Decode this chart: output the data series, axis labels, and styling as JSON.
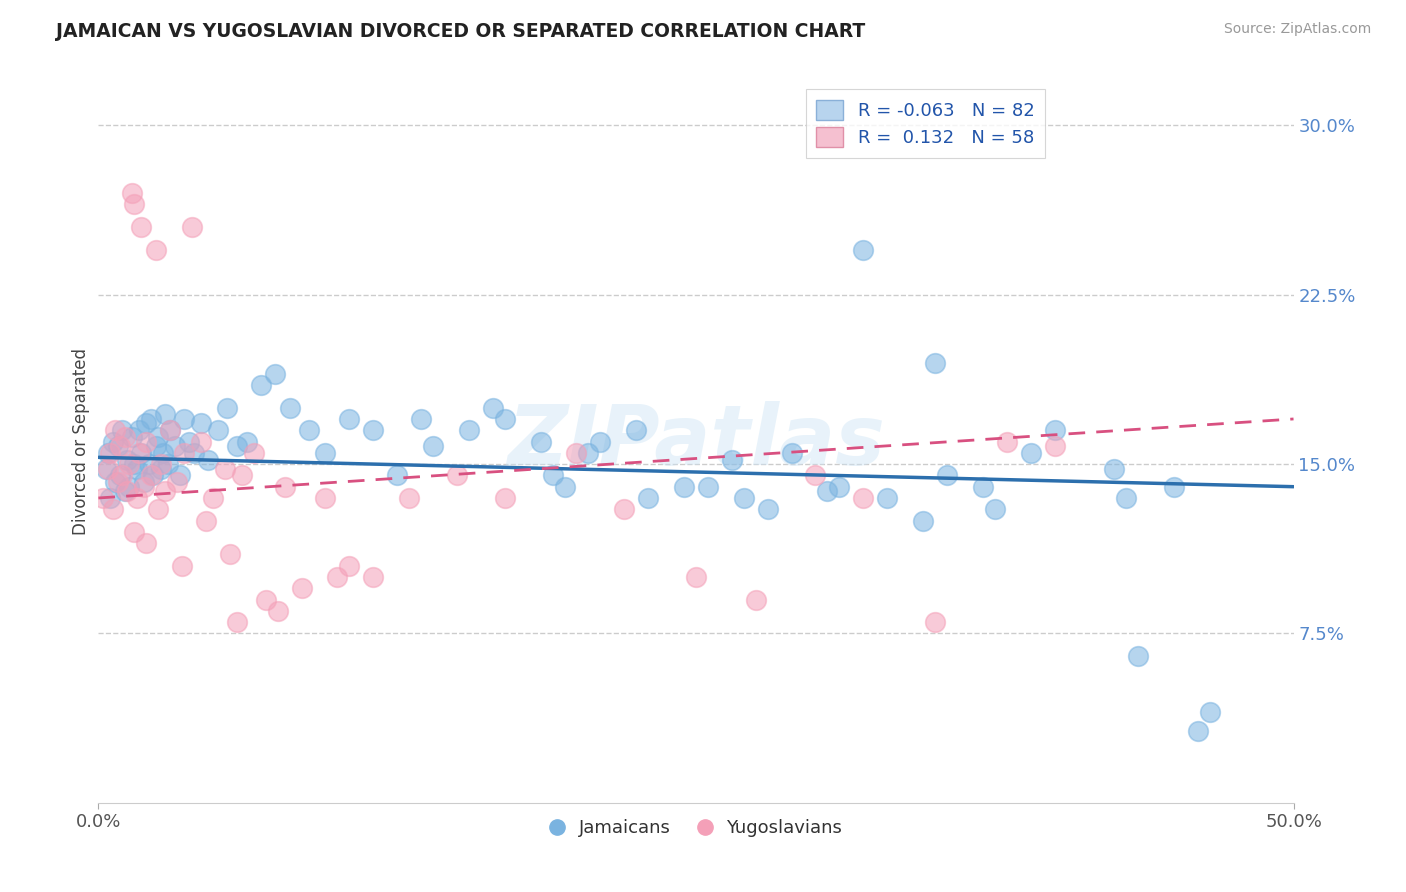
{
  "title": "JAMAICAN VS YUGOSLAVIAN DIVORCED OR SEPARATED CORRELATION CHART",
  "source": "Source: ZipAtlas.com",
  "ylabel": "Divorced or Separated",
  "ytick_values": [
    7.5,
    15.0,
    22.5,
    30.0
  ],
  "ytick_labels": [
    "7.5%",
    "15.0%",
    "22.5%",
    "30.0%"
  ],
  "xlim": [
    0.0,
    50.0
  ],
  "ylim": [
    0.0,
    32.0
  ],
  "watermark": "ZIPatlas",
  "blue_color": "#7ab3e0",
  "pink_color": "#f4a0b8",
  "blue_line_color": "#2c6fad",
  "pink_line_color": "#d85080",
  "tick_color": "#5588cc",
  "background": "#ffffff",
  "grid_color": "#cccccc",
  "legend_r1": "R = -0.063",
  "legend_n1": "N = 82",
  "legend_r2": "R =  0.132",
  "legend_n2": "N = 58",
  "jamaican_x": [
    0.3,
    0.4,
    0.5,
    0.6,
    0.7,
    0.8,
    0.9,
    1.0,
    1.1,
    1.2,
    1.3,
    1.4,
    1.5,
    1.6,
    1.7,
    1.8,
    1.9,
    2.0,
    2.1,
    2.2,
    2.3,
    2.4,
    2.5,
    2.6,
    2.7,
    2.8,
    2.9,
    3.0,
    3.2,
    3.4,
    3.6,
    3.8,
    4.0,
    4.3,
    4.6,
    5.0,
    5.4,
    5.8,
    6.2,
    6.8,
    7.4,
    8.0,
    8.8,
    9.5,
    10.5,
    11.5,
    12.5,
    14.0,
    15.5,
    17.0,
    19.0,
    21.0,
    23.0,
    25.5,
    27.0,
    29.0,
    31.0,
    33.0,
    35.5,
    37.5,
    40.0,
    42.5,
    43.5,
    46.0,
    46.5,
    28.0,
    32.0,
    34.5,
    19.5,
    22.5,
    13.5,
    16.5,
    18.5,
    20.5,
    24.5,
    26.5,
    30.5,
    35.0,
    37.0,
    39.0,
    43.0,
    45.0
  ],
  "jamaican_y": [
    14.8,
    15.5,
    13.5,
    16.0,
    14.2,
    15.8,
    14.5,
    16.5,
    13.8,
    15.2,
    14.0,
    16.2,
    15.0,
    14.8,
    16.5,
    15.5,
    14.2,
    16.8,
    15.0,
    17.0,
    14.5,
    15.8,
    16.2,
    14.8,
    15.5,
    17.2,
    15.0,
    16.5,
    15.8,
    14.5,
    17.0,
    16.0,
    15.5,
    16.8,
    15.2,
    16.5,
    17.5,
    15.8,
    16.0,
    18.5,
    19.0,
    17.5,
    16.5,
    15.5,
    17.0,
    16.5,
    14.5,
    15.8,
    16.5,
    17.0,
    14.5,
    16.0,
    13.5,
    14.0,
    13.5,
    15.5,
    14.0,
    13.5,
    14.5,
    13.0,
    16.5,
    14.8,
    6.5,
    3.2,
    4.0,
    13.0,
    24.5,
    12.5,
    14.0,
    16.5,
    17.0,
    17.5,
    16.0,
    15.5,
    14.0,
    15.2,
    13.8,
    19.5,
    14.0,
    15.5,
    13.5,
    14.0
  ],
  "yugoslavian_x": [
    0.2,
    0.4,
    0.5,
    0.6,
    0.7,
    0.8,
    0.9,
    1.0,
    1.1,
    1.2,
    1.3,
    1.4,
    1.5,
    1.6,
    1.7,
    1.8,
    1.9,
    2.0,
    2.2,
    2.4,
    2.6,
    2.8,
    3.0,
    3.3,
    3.6,
    3.9,
    4.3,
    4.8,
    5.3,
    5.8,
    6.5,
    7.0,
    7.8,
    8.5,
    9.5,
    10.5,
    11.5,
    13.0,
    15.0,
    17.0,
    20.0,
    22.0,
    25.0,
    27.5,
    30.0,
    32.0,
    35.0,
    38.0,
    40.0,
    1.5,
    2.0,
    2.5,
    3.5,
    4.5,
    5.5,
    6.0,
    7.5,
    10.0
  ],
  "yugoslavian_y": [
    13.5,
    14.8,
    15.5,
    13.0,
    16.5,
    14.2,
    15.8,
    14.5,
    16.2,
    13.8,
    15.0,
    27.0,
    26.5,
    13.5,
    15.5,
    25.5,
    14.0,
    16.0,
    14.5,
    24.5,
    15.0,
    13.8,
    16.5,
    14.2,
    15.5,
    25.5,
    16.0,
    13.5,
    14.8,
    8.0,
    15.5,
    9.0,
    14.0,
    9.5,
    13.5,
    10.5,
    10.0,
    13.5,
    14.5,
    13.5,
    15.5,
    13.0,
    10.0,
    9.0,
    14.5,
    13.5,
    8.0,
    16.0,
    15.8,
    12.0,
    11.5,
    13.0,
    10.5,
    12.5,
    11.0,
    14.5,
    8.5,
    10.0
  ]
}
